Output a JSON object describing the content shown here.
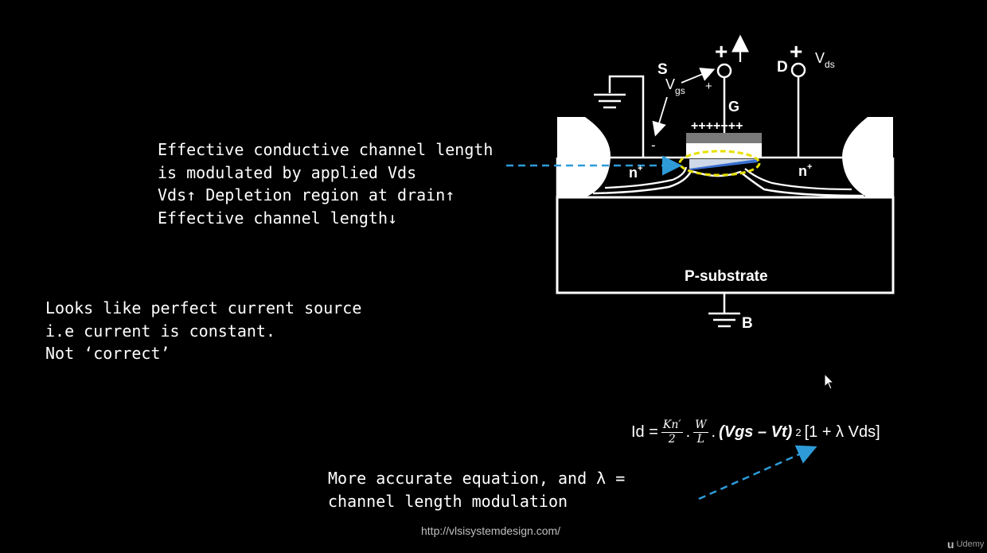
{
  "explanation": {
    "lines": [
      "Effective conductive channel length",
      "is modulated by applied Vds",
      "Vds",
      "Depletion region at drain",
      "Effective channel length"
    ]
  },
  "source_note": {
    "lines": [
      "Looks like perfect current source",
      "i.e current is constant.",
      "Not ‘correct’"
    ]
  },
  "diagram": {
    "labels": {
      "source": "S",
      "drain": "D",
      "gate": "G",
      "vgs_main": "V",
      "vgs_sub": "gs",
      "vds_main": "V",
      "vds_sub": "ds",
      "plus_gate": "+",
      "plus_drain": "+",
      "plus_small": "+",
      "minus_small": "-",
      "gate_charges": "+++++++",
      "n_left": "n",
      "n_right": "n",
      "n_sup": "+",
      "substrate": "P-substrate",
      "body": "B"
    }
  },
  "equation": {
    "lhs": "Id =",
    "frac1_num": "Kn′",
    "frac1_den": "2",
    "dot1": ".",
    "frac2_num": "W",
    "frac2_den": "L",
    "dot2": ".",
    "term": "(Vgs – Vt)",
    "exp": "2",
    "bracket": "[1 + λ Vds]"
  },
  "accurate_note": {
    "lines": [
      "More accurate equation, and λ =",
      "channel length modulation"
    ]
  },
  "footer": {
    "url": "http://vlsisystemdesign.com/",
    "brand": "Udemy"
  },
  "colors": {
    "background": "#000000",
    "arrow_blue": "#2e9bd8",
    "ellipse_yellow": "#e8e000",
    "gate_gray": "#7a7a7a",
    "channel_blue": "#3a6fd0"
  }
}
